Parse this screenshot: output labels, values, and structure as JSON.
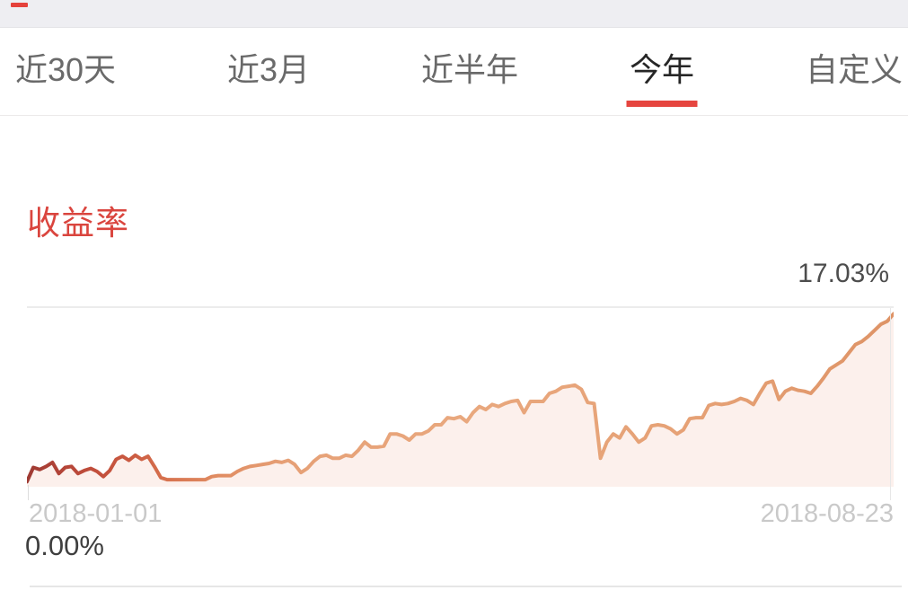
{
  "top_strip": {
    "bg_color": "#eeeef2",
    "red_dash_color": "#e5413b"
  },
  "tabs": {
    "items": [
      {
        "label": "近30天",
        "active": false
      },
      {
        "label": "近3月",
        "active": false
      },
      {
        "label": "近半年",
        "active": false
      },
      {
        "label": "今年",
        "active": true
      },
      {
        "label": "自定义",
        "active": false
      }
    ],
    "active_color": "#262626",
    "inactive_color": "#6a6a6a",
    "underline_color": "#e6453f"
  },
  "section": {
    "title": "收益率",
    "title_color": "#da453e"
  },
  "axis_labels": {
    "max_value": "17.03%",
    "min_value": "0.00%",
    "start_date": "2018-01-01",
    "end_date": "2018-08-23"
  },
  "chart_data": {
    "type": "area",
    "title": "收益率",
    "x_start": "2018-01-01",
    "x_end": "2018-08-23",
    "xlabel": "",
    "ylabel": "收益率 (%)",
    "y_min": 0,
    "y_max_point": 17.03,
    "y_axis_top": 17.6,
    "min_label": "0.00%",
    "max_label": "17.03%",
    "grid": "top horizontal line, right vertical line, left bottom tick",
    "legend": "none",
    "fill_color": "#fcf0ec",
    "line_gradient": [
      {
        "offset": 0.0,
        "color": "#9e3a33"
      },
      {
        "offset": 0.04,
        "color": "#b34438"
      },
      {
        "offset": 0.08,
        "color": "#c24f3c"
      },
      {
        "offset": 0.12,
        "color": "#ca5a41"
      },
      {
        "offset": 0.16,
        "color": "#d7724e"
      },
      {
        "offset": 0.22,
        "color": "#e08c62"
      },
      {
        "offset": 0.3,
        "color": "#e6a076"
      },
      {
        "offset": 0.5,
        "color": "#e9a87e"
      },
      {
        "offset": 0.8,
        "color": "#e5a074"
      },
      {
        "offset": 1.0,
        "color": "#de9366"
      }
    ],
    "values_pct": [
      0.5,
      1.9,
      1.7,
      2.0,
      2.4,
      1.3,
      1.9,
      2.0,
      1.3,
      1.6,
      1.8,
      1.5,
      1.0,
      1.6,
      2.7,
      3.0,
      2.6,
      3.1,
      2.7,
      3.0,
      2.0,
      0.9,
      0.7,
      0.7,
      0.7,
      0.7,
      0.7,
      0.7,
      0.7,
      1.0,
      1.1,
      1.1,
      1.1,
      1.5,
      1.8,
      2.0,
      2.1,
      2.2,
      2.3,
      2.5,
      2.4,
      2.6,
      2.2,
      1.4,
      1.8,
      2.5,
      3.0,
      3.1,
      2.8,
      2.8,
      3.1,
      3.0,
      3.6,
      4.4,
      3.9,
      3.9,
      4.0,
      5.2,
      5.2,
      5.0,
      4.6,
      5.2,
      5.2,
      5.5,
      6.1,
      6.1,
      6.8,
      6.7,
      6.9,
      6.4,
      7.3,
      7.9,
      7.6,
      8.1,
      7.9,
      8.2,
      8.4,
      8.5,
      7.3,
      8.4,
      8.4,
      8.4,
      9.2,
      9.4,
      9.8,
      9.9,
      10.0,
      9.6,
      8.3,
      8.2,
      2.8,
      4.4,
      5.2,
      4.8,
      5.9,
      5.2,
      4.4,
      4.8,
      6.0,
      6.1,
      6.0,
      5.7,
      5.2,
      5.6,
      6.7,
      6.8,
      6.8,
      8.0,
      8.2,
      8.1,
      8.2,
      8.4,
      8.7,
      8.5,
      8.1,
      9.2,
      10.2,
      10.4,
      8.6,
      9.4,
      9.7,
      9.5,
      9.4,
      9.2,
      9.9,
      10.7,
      11.6,
      12.0,
      12.4,
      13.2,
      14.0,
      14.3,
      14.8,
      15.4,
      16.0,
      16.3,
      17.03
    ]
  }
}
